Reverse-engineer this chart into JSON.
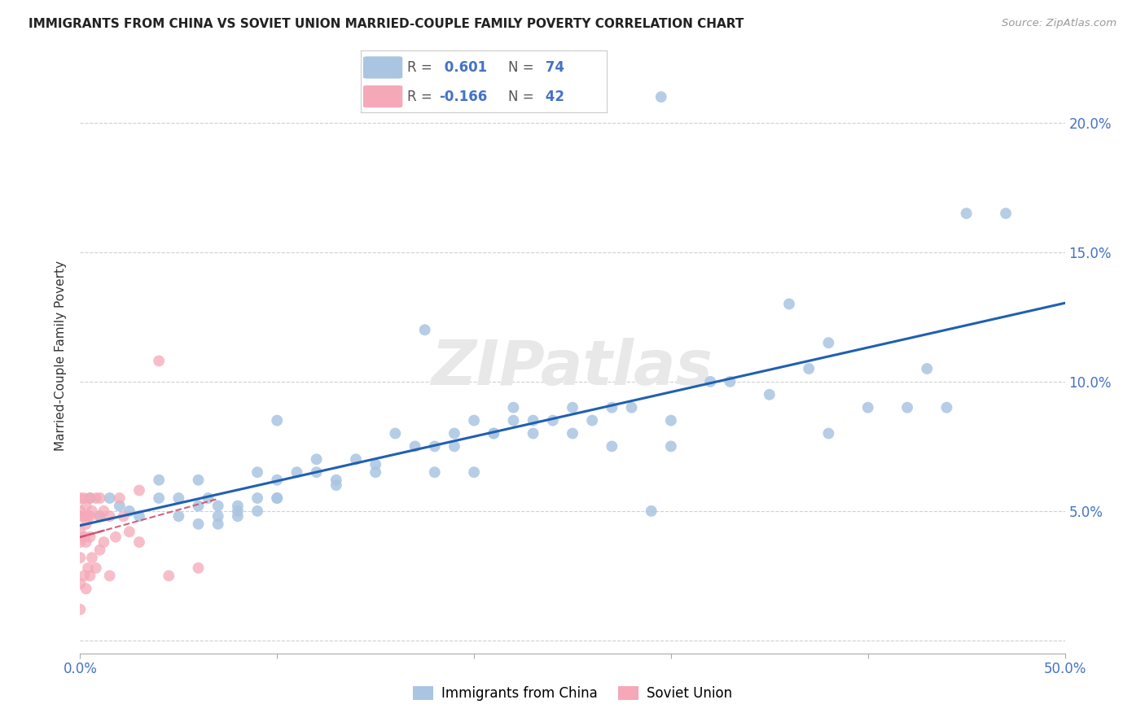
{
  "title": "IMMIGRANTS FROM CHINA VS SOVIET UNION MARRIED-COUPLE FAMILY POVERTY CORRELATION CHART",
  "source": "Source: ZipAtlas.com",
  "ylabel": "Married-Couple Family Poverty",
  "xlim": [
    0.0,
    0.5
  ],
  "ylim": [
    -0.005,
    0.225
  ],
  "xticks": [
    0.0,
    0.1,
    0.2,
    0.3,
    0.4,
    0.5
  ],
  "xticklabels": [
    "0.0%",
    "",
    "",
    "",
    "",
    "50.0%"
  ],
  "yticks": [
    0.0,
    0.05,
    0.1,
    0.15,
    0.2
  ],
  "yticklabels_right": [
    "",
    "5.0%",
    "10.0%",
    "15.0%",
    "20.0%"
  ],
  "china_R": 0.601,
  "china_N": 74,
  "soviet_R": -0.166,
  "soviet_N": 42,
  "china_color": "#aac5e2",
  "soviet_color": "#f5a8b8",
  "china_line_color": "#2060b0",
  "soviet_line_color": "#d05070",
  "watermark": "ZIPatlas",
  "china_x": [
    0.005,
    0.01,
    0.015,
    0.02,
    0.025,
    0.03,
    0.04,
    0.04,
    0.05,
    0.05,
    0.06,
    0.06,
    0.06,
    0.065,
    0.07,
    0.07,
    0.07,
    0.08,
    0.08,
    0.08,
    0.09,
    0.09,
    0.09,
    0.1,
    0.1,
    0.1,
    0.1,
    0.11,
    0.12,
    0.12,
    0.13,
    0.13,
    0.14,
    0.15,
    0.15,
    0.16,
    0.17,
    0.18,
    0.18,
    0.19,
    0.19,
    0.2,
    0.2,
    0.21,
    0.21,
    0.22,
    0.22,
    0.23,
    0.23,
    0.24,
    0.25,
    0.25,
    0.26,
    0.27,
    0.27,
    0.28,
    0.29,
    0.3,
    0.3,
    0.32,
    0.33,
    0.35,
    0.36,
    0.37,
    0.38,
    0.38,
    0.4,
    0.42,
    0.43,
    0.44,
    0.45,
    0.47,
    0.295,
    0.175
  ],
  "china_y": [
    0.055,
    0.048,
    0.055,
    0.052,
    0.05,
    0.048,
    0.055,
    0.062,
    0.055,
    0.048,
    0.045,
    0.052,
    0.062,
    0.055,
    0.052,
    0.048,
    0.045,
    0.052,
    0.048,
    0.05,
    0.05,
    0.055,
    0.065,
    0.055,
    0.062,
    0.085,
    0.055,
    0.065,
    0.07,
    0.065,
    0.062,
    0.06,
    0.07,
    0.068,
    0.065,
    0.08,
    0.075,
    0.075,
    0.065,
    0.08,
    0.075,
    0.085,
    0.065,
    0.08,
    0.08,
    0.09,
    0.085,
    0.085,
    0.08,
    0.085,
    0.09,
    0.08,
    0.085,
    0.09,
    0.075,
    0.09,
    0.05,
    0.085,
    0.075,
    0.1,
    0.1,
    0.095,
    0.13,
    0.105,
    0.115,
    0.08,
    0.09,
    0.09,
    0.105,
    0.09,
    0.165,
    0.165,
    0.21,
    0.12
  ],
  "soviet_x": [
    0.0,
    0.0,
    0.0,
    0.0,
    0.0,
    0.0,
    0.0,
    0.0,
    0.002,
    0.002,
    0.002,
    0.002,
    0.003,
    0.003,
    0.003,
    0.003,
    0.004,
    0.004,
    0.005,
    0.005,
    0.005,
    0.005,
    0.006,
    0.006,
    0.008,
    0.008,
    0.01,
    0.01,
    0.01,
    0.012,
    0.012,
    0.015,
    0.015,
    0.018,
    0.02,
    0.022,
    0.025,
    0.03,
    0.03,
    0.04,
    0.045,
    0.06
  ],
  "soviet_y": [
    0.055,
    0.05,
    0.048,
    0.042,
    0.038,
    0.032,
    0.022,
    0.012,
    0.055,
    0.048,
    0.04,
    0.025,
    0.052,
    0.045,
    0.038,
    0.02,
    0.048,
    0.028,
    0.055,
    0.048,
    0.04,
    0.025,
    0.05,
    0.032,
    0.055,
    0.028,
    0.055,
    0.048,
    0.035,
    0.05,
    0.038,
    0.048,
    0.025,
    0.04,
    0.055,
    0.048,
    0.042,
    0.058,
    0.038,
    0.108,
    0.025,
    0.028
  ],
  "background_color": "#ffffff",
  "grid_color": "#d0d0d0",
  "legend_china_text": "R =",
  "legend_china_r_val": " 0.601",
  "legend_china_n_text": "N =",
  "legend_china_n_val": " 74",
  "legend_soviet_text": "R =",
  "legend_soviet_r_val": "-0.166",
  "legend_soviet_n_text": "N =",
  "legend_soviet_n_val": " 42",
  "bottom_legend_china": "Immigrants from China",
  "bottom_legend_soviet": "Soviet Union"
}
